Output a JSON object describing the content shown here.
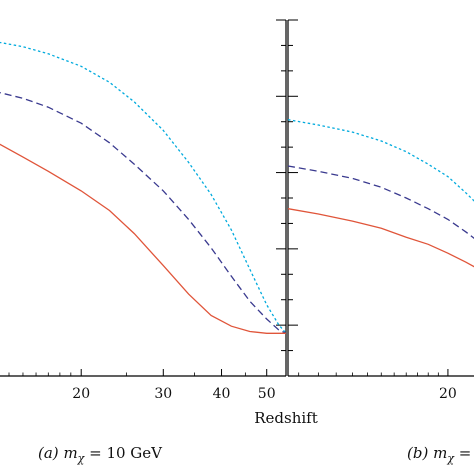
{
  "chart_data": [
    {
      "type": "line",
      "caption": {
        "label": "(a)",
        "math": "m",
        "sub": "χ",
        "rest": " = 10 GeV"
      },
      "xlabel": "Redshift",
      "x_scale": "log",
      "x_ticks": [
        20,
        30,
        40,
        50
      ],
      "xlim": [
        13,
        55
      ],
      "ylim": [
        0,
        1
      ],
      "grid": false,
      "series": [
        {
          "color": "#00aadd",
          "dash": "dotted",
          "x": [
            13,
            15,
            17,
            20,
            23,
            26,
            30,
            34,
            38,
            42,
            46,
            50,
            53,
            55
          ],
          "y": [
            0.94,
            0.925,
            0.905,
            0.87,
            0.825,
            0.77,
            0.69,
            0.6,
            0.51,
            0.41,
            0.3,
            0.2,
            0.145,
            0.12
          ]
        },
        {
          "color": "#3a3a8f",
          "dash": "dashed",
          "x": [
            13,
            15,
            17,
            20,
            23,
            26,
            30,
            34,
            38,
            42,
            46,
            50,
            53,
            55
          ],
          "y": [
            0.8,
            0.78,
            0.755,
            0.71,
            0.655,
            0.595,
            0.52,
            0.44,
            0.36,
            0.28,
            0.21,
            0.16,
            0.13,
            0.12
          ]
        },
        {
          "color": "#e0553a",
          "dash": "solid",
          "x": [
            13,
            15,
            17,
            20,
            23,
            26,
            30,
            34,
            38,
            42,
            46,
            50,
            53,
            55
          ],
          "y": [
            0.66,
            0.615,
            0.575,
            0.52,
            0.465,
            0.4,
            0.31,
            0.23,
            0.17,
            0.14,
            0.125,
            0.12,
            0.12,
            0.12
          ]
        }
      ]
    },
    {
      "type": "line",
      "caption": {
        "label": "(b)",
        "math": "m",
        "sub": "χ",
        "rest": " ="
      },
      "xlabel": "",
      "x_scale": "log",
      "x_ticks": [
        20
      ],
      "xlim": [
        8.5,
        24
      ],
      "ylim": [
        0,
        1
      ],
      "grid": false,
      "series": [
        {
          "color": "#00aadd",
          "dash": "dotted",
          "x": [
            8.5,
            10,
            12,
            14,
            16,
            18,
            20,
            22,
            24
          ],
          "y": [
            0.72,
            0.705,
            0.685,
            0.66,
            0.63,
            0.595,
            0.56,
            0.515,
            0.47
          ]
        },
        {
          "color": "#3a3a8f",
          "dash": "dashed",
          "x": [
            8.5,
            10,
            12,
            14,
            16,
            18,
            20,
            22,
            24
          ],
          "y": [
            0.59,
            0.575,
            0.555,
            0.53,
            0.5,
            0.47,
            0.44,
            0.405,
            0.37
          ]
        },
        {
          "color": "#e0553a",
          "dash": "solid",
          "x": [
            8.5,
            10,
            12,
            14,
            16,
            18,
            20,
            22,
            24
          ],
          "y": [
            0.47,
            0.455,
            0.435,
            0.415,
            0.39,
            0.37,
            0.345,
            0.32,
            0.295
          ]
        }
      ]
    }
  ]
}
